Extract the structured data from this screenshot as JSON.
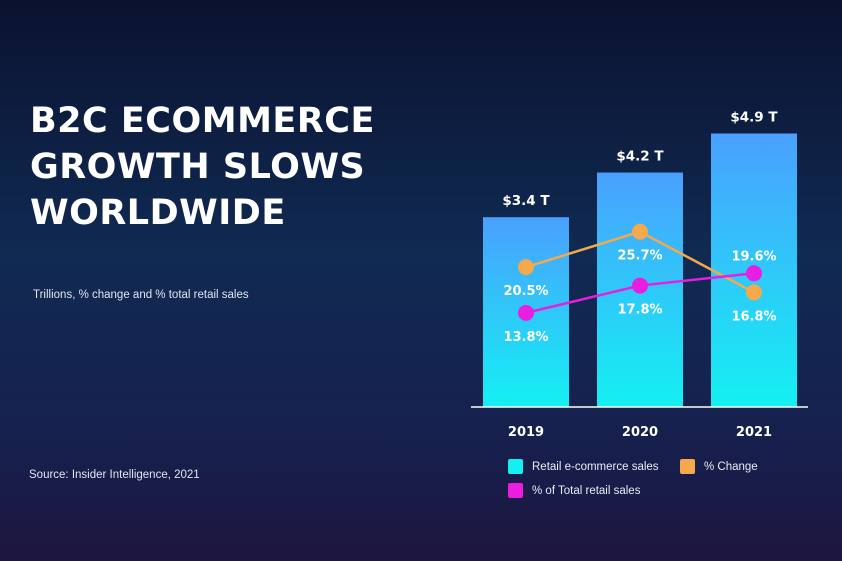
{
  "title_lines": [
    "B2C ECOMMERCE",
    "GROWTH SLOWS",
    "WORLDWIDE"
  ],
  "subtitle": "Trillions, % change and % total retail sales",
  "source": "Source: Insider Intelligence, 2021",
  "colors": {
    "bar_top": "#4aa0ff",
    "bar_bottom": "#14f0f2",
    "change": "#f4a94c",
    "share": "#ea1ee0"
  },
  "legend": {
    "sales": "Retail e-commerce sales",
    "change": "% Change",
    "share": "% of Total retail sales"
  },
  "chart_data": {
    "type": "bar",
    "categories": [
      "2019",
      "2020",
      "2021"
    ],
    "series": [
      {
        "name": "Retail e-commerce sales",
        "type": "bar",
        "values": [
          3.4,
          4.2,
          4.9
        ],
        "labels": [
          "$3.4 T",
          "$4.2 T",
          "$4.9 T"
        ]
      },
      {
        "name": "% Change",
        "type": "line",
        "values": [
          20.5,
          25.7,
          16.8
        ],
        "labels": [
          "20.5%",
          "25.7%",
          "16.8%"
        ]
      },
      {
        "name": "% of Total retail sales",
        "type": "line",
        "values": [
          13.8,
          17.8,
          19.6
        ],
        "labels": [
          "13.8%",
          "17.8%",
          "19.6%"
        ]
      }
    ],
    "title": "B2C ECOMMERCE GROWTH SLOWS WORLDWIDE",
    "subtitle": "Trillions, % change and % total retail sales",
    "xlabel": "",
    "ylabel": "",
    "ylim": [
      0,
      5.5
    ],
    "pct_lim": [
      0,
      45
    ],
    "grid": false,
    "legend_position": "bottom"
  }
}
